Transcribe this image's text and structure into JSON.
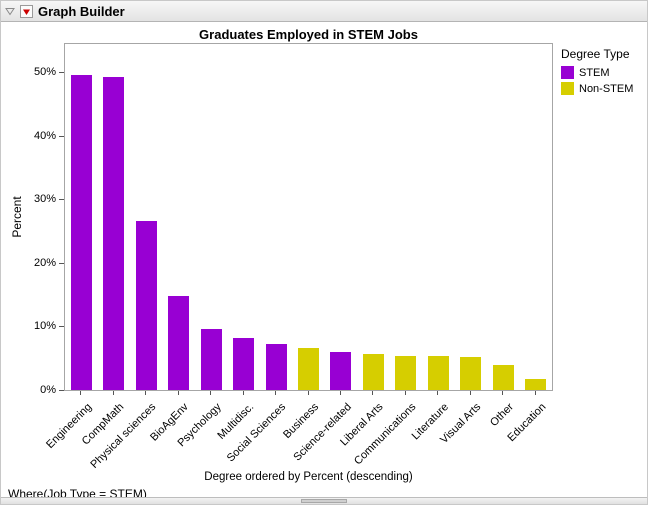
{
  "window": {
    "title": "Graph Builder"
  },
  "where_clause": "Where(Job Type = STEM)",
  "chart_data": {
    "type": "bar",
    "title": "Graduates Employed in STEM Jobs",
    "xlabel": "Degree ordered by Percent (descending)",
    "ylabel": "Percent",
    "ylim": [
      0,
      50
    ],
    "yticks": [
      "0%",
      "10%",
      "20%",
      "30%",
      "40%",
      "50%"
    ],
    "grid": "off",
    "legend_position": "right",
    "categories": [
      "Engineering",
      "CompMath",
      "Physical sciences",
      "BioAgEnv",
      "Psychology",
      "Multidisc.",
      "Social Sciences",
      "Business",
      "Science-related",
      "Liberal Arts",
      "Communications",
      "Literature",
      "Visual Arts",
      "Other",
      "Education"
    ],
    "values": [
      49.6,
      49.2,
      26.5,
      14.8,
      9.6,
      8.2,
      7.2,
      6.6,
      6.0,
      5.6,
      5.4,
      5.4,
      5.2,
      3.9,
      1.8
    ],
    "groups": [
      "STEM",
      "STEM",
      "STEM",
      "STEM",
      "STEM",
      "STEM",
      "STEM",
      "Non-STEM",
      "STEM",
      "Non-STEM",
      "Non-STEM",
      "Non-STEM",
      "Non-STEM",
      "Non-STEM",
      "Non-STEM"
    ],
    "legend": {
      "title": "Degree Type",
      "entries": [
        {
          "label": "STEM",
          "color": "#9800d3"
        },
        {
          "label": "Non-STEM",
          "color": "#d6ce00"
        }
      ]
    }
  }
}
